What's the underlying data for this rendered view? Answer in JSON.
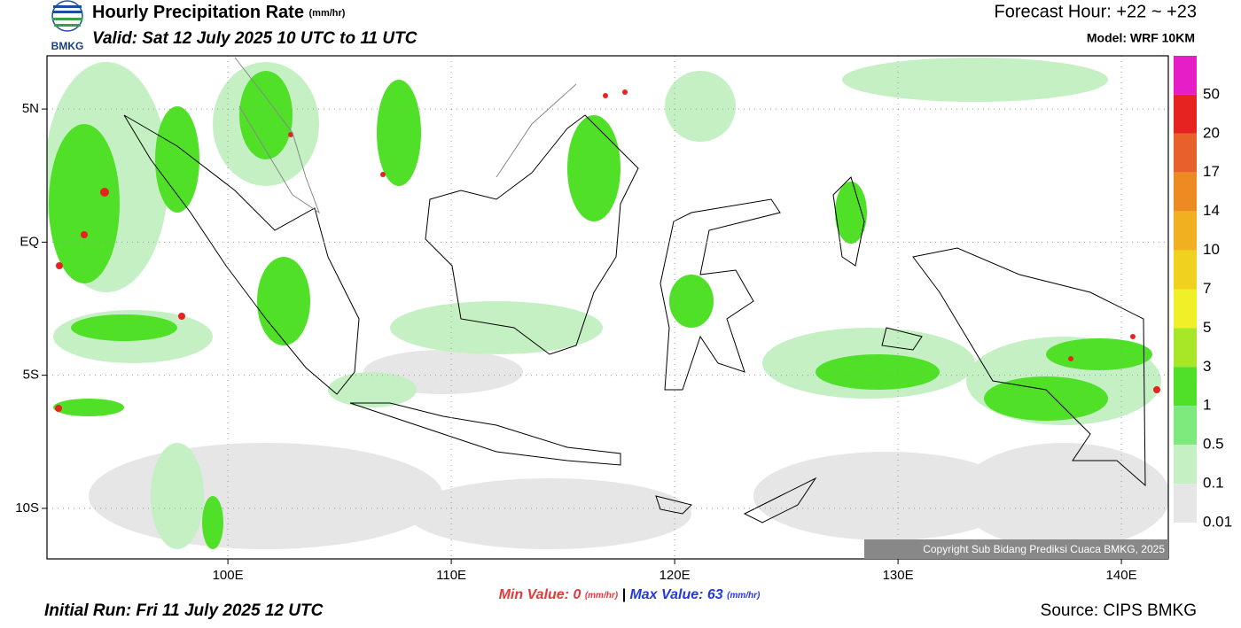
{
  "header": {
    "logo": "BMKG",
    "title": "Hourly Precipitation Rate",
    "title_units": "(mm/hr)",
    "valid": "Valid: Sat 12 July 2025 10 UTC to 11 UTC",
    "forecast_hour": "Forecast Hour: +22 ~ +23",
    "model": "Model: WRF 10KM"
  },
  "map": {
    "xlim": [
      91.9,
      142.1
    ],
    "ylim": [
      -11.9,
      7.0
    ],
    "xticks": [
      {
        "value": 100,
        "label": "100E"
      },
      {
        "value": 110,
        "label": "110E"
      },
      {
        "value": 120,
        "label": "120E"
      },
      {
        "value": 130,
        "label": "130E"
      },
      {
        "value": 140,
        "label": "140E"
      }
    ],
    "yticks": [
      {
        "value": 5,
        "label": "5N"
      },
      {
        "value": 0,
        "label": "EQ"
      },
      {
        "value": -5,
        "label": "5S"
      },
      {
        "value": -10,
        "label": "10S"
      }
    ],
    "grid": true,
    "copyright": "Copyright Sub Bidang Prediksi Cuaca BMKG, 2025"
  },
  "legend": {
    "levels": [
      50,
      20,
      17,
      14,
      10,
      7,
      5,
      3,
      1,
      0.5,
      0.1,
      0.01
    ],
    "colors": [
      "#e61ec8",
      "#e62320",
      "#e8602a",
      "#ee8a22",
      "#f0b020",
      "#f0d21e",
      "#f0f028",
      "#a8e628",
      "#50e028",
      "#7eea7e",
      "#c4f0c4",
      "#e6e6e6"
    ]
  },
  "footer": {
    "initial_run": "Initial Run: Fri 11 July 2025 12 UTC",
    "min_label": "Min Value:",
    "min_value": 0,
    "min_units": "(mm/hr)",
    "separator": "|",
    "max_label": "Max Value:",
    "max_value": 63,
    "max_units": "(mm/hr)",
    "source": "Source: CIPS BMKG"
  }
}
